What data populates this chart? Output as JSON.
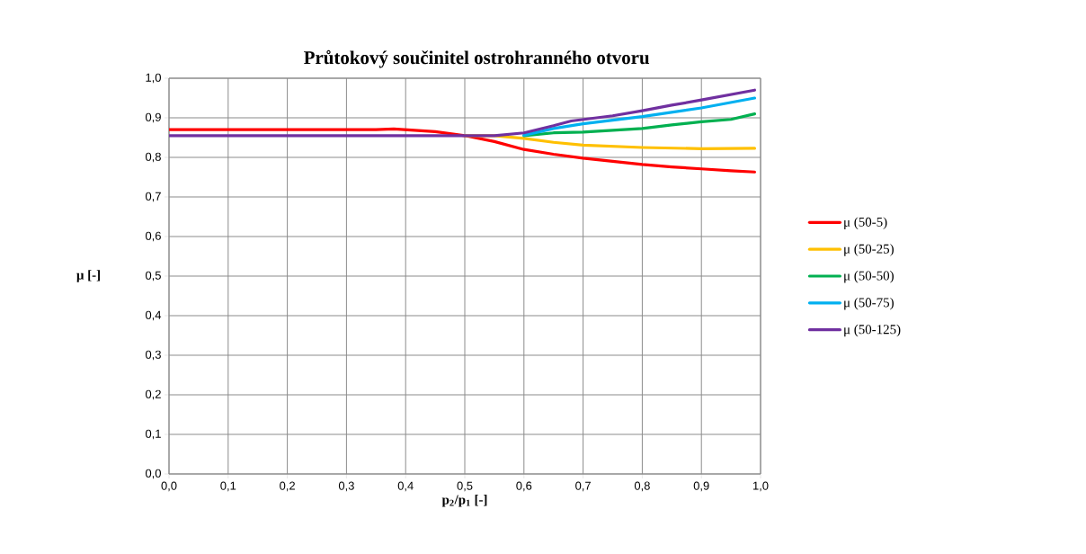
{
  "chart_data": {
    "type": "line",
    "title": "Průtokový součinitel ostrohranného otvoru",
    "xlabel": "**p$_{2}$/p$_{1}$ [-]**",
    "ylabel": "**μ [-]**",
    "xlim": [
      0,
      1
    ],
    "ylim": [
      0,
      1
    ],
    "xticks": [
      {
        "value": 0,
        "label": "0,0"
      },
      {
        "value": 0.1,
        "label": "0,1"
      },
      {
        "value": 0.2,
        "label": "0,2"
      },
      {
        "value": 0.3,
        "label": "0,3"
      },
      {
        "value": 0.4,
        "label": "0,4"
      },
      {
        "value": 0.5,
        "label": "0,5"
      },
      {
        "value": 0.6,
        "label": "0,6"
      },
      {
        "value": 0.7,
        "label": "0,7"
      },
      {
        "value": 0.8,
        "label": "0,8"
      },
      {
        "value": 0.9,
        "label": "0,9"
      },
      {
        "value": 1,
        "label": "1,0"
      }
    ],
    "yticks": [
      {
        "value": 0,
        "label": "0,0"
      },
      {
        "value": 0.1,
        "label": "0,1"
      },
      {
        "value": 0.2,
        "label": "0,2"
      },
      {
        "value": 0.3,
        "label": "0,3"
      },
      {
        "value": 0.4,
        "label": "0,4"
      },
      {
        "value": 0.5,
        "label": "0,5"
      },
      {
        "value": 0.6,
        "label": "0,6"
      },
      {
        "value": 0.7,
        "label": "0,7"
      },
      {
        "value": 0.8,
        "label": "0,8"
      },
      {
        "value": 0.9,
        "label": "0,9"
      },
      {
        "value": 1,
        "label": "1,0"
      }
    ],
    "grid": true,
    "legend": "right",
    "marker": "none",
    "line_style": "solid",
    "series": [
      {
        "name": "μ (50-5)",
        "color": "#ff0000",
        "x": [
          0,
          0.1,
          0.2,
          0.3,
          0.35,
          0.38,
          0.45,
          0.5,
          0.55,
          0.6,
          0.65,
          0.7,
          0.75,
          0.8,
          0.85,
          0.9,
          0.95,
          0.99
        ],
        "values": [
          0.87,
          0.87,
          0.87,
          0.87,
          0.87,
          0.872,
          0.865,
          0.855,
          0.84,
          0.82,
          0.808,
          0.798,
          0.79,
          0.782,
          0.776,
          0.771,
          0.766,
          0.763
        ]
      },
      {
        "name": "μ (50-25)",
        "color": "#ffc000",
        "x": [
          0.5,
          0.55,
          0.6,
          0.65,
          0.7,
          0.8,
          0.9,
          0.99
        ],
        "values": [
          0.855,
          0.855,
          0.848,
          0.838,
          0.831,
          0.825,
          0.822,
          0.823
        ]
      },
      {
        "name": "μ (50-50)",
        "color": "#00b050",
        "x": [
          0.6,
          0.65,
          0.7,
          0.8,
          0.85,
          0.9,
          0.95,
          0.99
        ],
        "values": [
          0.855,
          0.862,
          0.864,
          0.873,
          0.882,
          0.89,
          0.896,
          0.91
        ]
      },
      {
        "name": "μ (50-75)",
        "color": "#00b0f0",
        "x": [
          0.6,
          0.65,
          0.7,
          0.8,
          0.9,
          0.99
        ],
        "values": [
          0.856,
          0.873,
          0.885,
          0.903,
          0.925,
          0.95
        ]
      },
      {
        "name": "μ (50-125)",
        "color": "#7030a0",
        "x": [
          0,
          0.1,
          0.2,
          0.3,
          0.4,
          0.5,
          0.55,
          0.6,
          0.65,
          0.68,
          0.75,
          0.8,
          0.85,
          0.9,
          0.99
        ],
        "values": [
          0.855,
          0.855,
          0.855,
          0.855,
          0.855,
          0.855,
          0.855,
          0.862,
          0.88,
          0.892,
          0.905,
          0.918,
          0.932,
          0.945,
          0.97
        ]
      }
    ]
  }
}
